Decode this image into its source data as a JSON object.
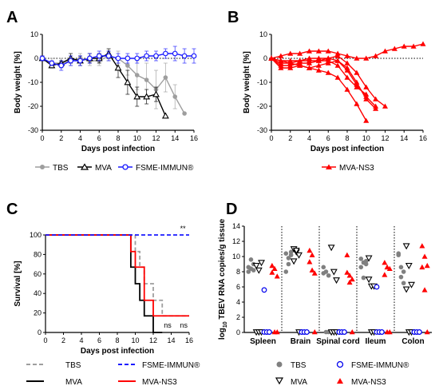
{
  "chart_data": [
    {
      "panel": "A",
      "type": "line",
      "xlabel": "Days post infection",
      "ylabel": "Body weight [%]",
      "xlim": [
        0,
        16
      ],
      "ylim": [
        -30,
        10
      ],
      "xticks": [
        0,
        2,
        4,
        6,
        8,
        10,
        12,
        14,
        16
      ],
      "yticks": [
        -30,
        -20,
        -10,
        0,
        10
      ],
      "reference_line_y": 0,
      "series": [
        {
          "name": "TBS",
          "color": "#9e9e9e",
          "marker": "circle-filled",
          "x": [
            0,
            1,
            2,
            3,
            4,
            5,
            6,
            7,
            8,
            9,
            10,
            11,
            12,
            13,
            14,
            15
          ],
          "y": [
            0,
            -2,
            -2,
            -1,
            0,
            -1,
            -1,
            1,
            0,
            -3,
            -7,
            -9,
            -13,
            -8,
            -16,
            -23
          ],
          "err": [
            1,
            2,
            2,
            2,
            2,
            2,
            2,
            2,
            3,
            4,
            6,
            7,
            8,
            6,
            5,
            0
          ]
        },
        {
          "name": "MVA",
          "color": "#000000",
          "marker": "triangle-open",
          "x": [
            0,
            1,
            2,
            3,
            4,
            5,
            6,
            7,
            8,
            9,
            10,
            11,
            12,
            13
          ],
          "y": [
            0,
            -3,
            -2,
            0,
            -1,
            0,
            0,
            2,
            -4,
            -10,
            -16,
            -16,
            -15,
            -24
          ],
          "err": [
            1,
            1,
            1,
            2,
            2,
            2,
            2,
            2,
            4,
            5,
            4,
            3,
            3,
            0
          ]
        },
        {
          "name": "FSME-IMMUN®",
          "color": "#1a1aff",
          "marker": "circle-open",
          "x": [
            0,
            1,
            2,
            3,
            4,
            5,
            6,
            7,
            8,
            9,
            10,
            11,
            12,
            13,
            14,
            15,
            16
          ],
          "y": [
            0,
            -2,
            -3,
            -1,
            -1,
            0,
            1,
            1,
            0,
            0,
            0,
            1,
            1,
            2,
            2,
            1,
            1
          ],
          "err": [
            1,
            1,
            2,
            2,
            2,
            2,
            2,
            2,
            2,
            2,
            2,
            2,
            2,
            2,
            3,
            3,
            3
          ]
        }
      ]
    },
    {
      "panel": "B",
      "type": "line",
      "xlabel": "Days post infection",
      "ylabel": "Body weight [%]",
      "xlim": [
        0,
        16
      ],
      "ylim": [
        -30,
        10
      ],
      "xticks": [
        0,
        2,
        4,
        6,
        8,
        10,
        12,
        14,
        16
      ],
      "yticks": [
        -30,
        -20,
        -10,
        0,
        10
      ],
      "reference_line_y": 0,
      "series": [
        {
          "name": "MVA-NS3",
          "color": "#ff0000",
          "marker": "triangle-filled",
          "x": [
            0,
            1,
            2,
            3,
            4,
            5,
            6,
            7,
            8,
            9,
            10,
            11,
            12,
            13,
            14,
            15,
            16
          ],
          "y": [
            0,
            1,
            2,
            2,
            3,
            3,
            3,
            2,
            1,
            0,
            0,
            1,
            3,
            4,
            5,
            5,
            6
          ]
        },
        {
          "name": "",
          "color": "#ff0000",
          "marker": "triangle-filled",
          "x": [
            0,
            1,
            2,
            3,
            4,
            5,
            6,
            7,
            8,
            9,
            10,
            11,
            12
          ],
          "y": [
            0,
            -1,
            -1,
            -1,
            0,
            0,
            0,
            1,
            -2,
            -6,
            -12,
            -17,
            -20
          ]
        },
        {
          "name": "",
          "color": "#ff0000",
          "marker": "triangle-filled",
          "x": [
            0,
            1,
            2,
            3,
            4,
            5,
            6,
            7,
            8,
            9,
            10,
            11
          ],
          "y": [
            0,
            -2,
            -2,
            -1,
            -1,
            -1,
            0,
            -1,
            -5,
            -11,
            -16,
            -20
          ]
        },
        {
          "name": "",
          "color": "#ff0000",
          "marker": "triangle-filled",
          "x": [
            0,
            1,
            2,
            3,
            4,
            5,
            6,
            7,
            8,
            9,
            10
          ],
          "y": [
            0,
            -3,
            -3,
            -2,
            -2,
            -1,
            -1,
            -3,
            -8,
            -12,
            -15
          ]
        },
        {
          "name": "",
          "color": "#ff0000",
          "marker": "triangle-filled",
          "x": [
            0,
            1,
            2,
            3,
            4,
            5,
            6,
            7,
            8,
            9,
            10
          ],
          "y": [
            0,
            -4,
            -4,
            -3,
            -4,
            -5,
            -6,
            -8,
            -13,
            -19,
            -26
          ]
        },
        {
          "name": "",
          "color": "#ff0000",
          "marker": "triangle-filled",
          "x": [
            0,
            1,
            2,
            3,
            4,
            5,
            6,
            7,
            8,
            9,
            10,
            11
          ],
          "y": [
            0,
            -1,
            -2,
            -3,
            -4,
            -3,
            -2,
            -1,
            -4,
            -10,
            -17,
            -21
          ]
        }
      ]
    },
    {
      "panel": "C",
      "type": "line",
      "xlabel": "Days post infection",
      "ylabel": "Survival [%]",
      "xlim": [
        0,
        16
      ],
      "ylim": [
        0,
        100
      ],
      "xticks": [
        0,
        2,
        4,
        6,
        8,
        10,
        12,
        14,
        16
      ],
      "yticks": [
        0,
        20,
        40,
        60,
        80,
        100
      ],
      "annotations": [
        {
          "text": "**",
          "x": 15.3,
          "y": 104
        },
        {
          "text": "ns",
          "x": 13.6,
          "y": 5
        },
        {
          "text": "ns",
          "x": 15.4,
          "y": 5
        }
      ],
      "series": [
        {
          "name": "TBS",
          "color": "#9e9e9e",
          "dash": "dashed",
          "x": [
            0,
            10,
            10,
            10.5,
            10.5,
            11,
            11,
            12,
            12,
            13,
            13,
            16
          ],
          "y": [
            100,
            100,
            83,
            83,
            67,
            67,
            50,
            50,
            33,
            33,
            17,
            17
          ]
        },
        {
          "name": "MVA",
          "color": "#000000",
          "dash": "solid",
          "x": [
            0,
            9.5,
            9.5,
            10,
            10,
            10.5,
            10.5,
            11,
            11,
            12,
            12,
            13
          ],
          "y": [
            100,
            100,
            67,
            67,
            50,
            50,
            33,
            33,
            17,
            17,
            0,
            0
          ]
        },
        {
          "name": "FSME-IMMUN®",
          "color": "#1a1aff",
          "dash": "dashed",
          "x": [
            0,
            16
          ],
          "y": [
            100,
            100
          ]
        },
        {
          "name": "MVA-NS3",
          "color": "#ff0000",
          "dash": "solid",
          "x": [
            0,
            9.5,
            9.5,
            10,
            10,
            11,
            11,
            12,
            12,
            16
          ],
          "y": [
            100,
            100,
            83,
            83,
            67,
            67,
            33,
            33,
            17,
            17
          ]
        }
      ]
    },
    {
      "panel": "D",
      "type": "scatter",
      "ylabel": "log10 TBEV RNA copies/g tissue",
      "ylim": [
        0,
        14
      ],
      "yticks": [
        0,
        2,
        4,
        6,
        8,
        10,
        12,
        14
      ],
      "categories": [
        "Spleen",
        "Brain",
        "Spinal cord",
        "Ileum",
        "Colon"
      ],
      "groups": [
        {
          "name": "TBS",
          "color": "#808080",
          "marker": "circle-filled",
          "values": [
            [
              8.0,
              8.4,
              9.0,
              8.6,
              9.6,
              8.2
            ],
            [
              10.4,
              9.8,
              10.6,
              8.0,
              9.0,
              10.2
            ],
            [
              7.8,
              8.0,
              7.5,
              8.6,
              0,
              0
            ],
            [
              8.6,
              9.2,
              9.0,
              9.7,
              7.2,
              9.4
            ],
            [
              10.2,
              8.6,
              8.0,
              10.4,
              7.3,
              6.5
            ]
          ]
        },
        {
          "name": "MVA",
          "color": "#000000",
          "marker": "triangle-down-open",
          "values": [
            [
              8.8,
              8.2,
              9.2,
              0,
              0,
              0
            ],
            [
              11.0,
              10.6,
              10.2,
              9.4,
              10.8,
              0
            ],
            [
              11.2,
              8.0,
              6.9,
              0,
              0,
              0
            ],
            [
              7.0,
              6.1,
              6.1,
              9.8,
              0,
              0
            ],
            [
              11.4,
              8.8,
              6.3,
              5.7,
              0,
              0
            ]
          ]
        },
        {
          "name": "FSME-IMMUN®",
          "color": "#0000ee",
          "marker": "circle-open",
          "values": [
            [
              5.6,
              0,
              0,
              0,
              0,
              0
            ],
            [
              0,
              0,
              0,
              0,
              0,
              0
            ],
            [
              0,
              0,
              0,
              0,
              0,
              0
            ],
            [
              6.0,
              0,
              0,
              0,
              0,
              0
            ],
            [
              0,
              0,
              0,
              0,
              0,
              0
            ]
          ]
        },
        {
          "name": "MVA-NS3",
          "color": "#ff0000",
          "marker": "triangle-filled",
          "values": [
            [
              8.8,
              8.4,
              7.4,
              7.9,
              0,
              0
            ],
            [
              10.8,
              10.2,
              7.8,
              9.3,
              8.2,
              0
            ],
            [
              10.2,
              7.5,
              7.0,
              7.9,
              6.6,
              0
            ],
            [
              9.2,
              8.6,
              8.4,
              7.6,
              0,
              0
            ],
            [
              11.4,
              10.0,
              8.8,
              8.6,
              5.6,
              0
            ]
          ]
        }
      ]
    }
  ],
  "legend_labels": {
    "a": [
      "TBS",
      "MVA",
      "FSME-IMMUN®"
    ],
    "b": [
      "MVA-NS3"
    ],
    "c": [
      "TBS",
      "FSME-IMMUN®",
      "MVA",
      "MVA-NS3"
    ],
    "d": [
      "TBS",
      "FSME-IMMUN®",
      "MVA",
      "MVA-NS3"
    ]
  },
  "panel_letters": [
    "A",
    "B",
    "C",
    "D"
  ],
  "d_ylabel": {
    "prefix": "log",
    "sub": "10",
    "rest": " TBEV RNA copies/g tissue"
  }
}
